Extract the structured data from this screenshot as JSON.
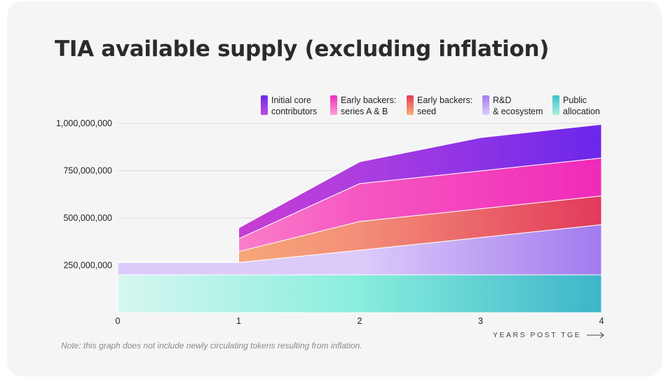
{
  "title": "TIA available supply (excluding inflation)",
  "note": "Note: this graph does not include newly circulating tokens resulting from inflation.",
  "legend": [
    {
      "line1": "Initial core",
      "line2": "contributors",
      "color_top": "#6a2ae8",
      "color_bottom": "#c34be0"
    },
    {
      "line1": "Early backers:",
      "line2": "series A & B",
      "color_top": "#f02aba",
      "color_bottom": "#f9a2d6"
    },
    {
      "line1": "Early backers:",
      "line2": "seed",
      "color_top": "#e43a5c",
      "color_bottom": "#f9b27a"
    },
    {
      "line1": "R&D",
      "line2": "& ecosystem",
      "color_top": "#a77af0",
      "color_bottom": "#ddccfa"
    },
    {
      "line1": "Public",
      "line2": "allocation",
      "color_top": "#3cc1cc",
      "color_bottom": "#a8f0e0"
    }
  ],
  "chart_data": {
    "type": "area",
    "title": "TIA available supply (excluding inflation)",
    "xlabel": "YEARS POST TGE",
    "ylabel": "",
    "x_ticks": [
      "0",
      "1",
      "2",
      "3",
      "4"
    ],
    "y_ticks": [
      "250,000,000",
      "500,000,000",
      "750,000,000",
      "1,000,000,000"
    ],
    "ylim": [
      0,
      1000000000
    ],
    "xlim": [
      0,
      4
    ],
    "stacked": true,
    "grid": "horizontal",
    "legend_position": "top",
    "series": [
      {
        "name": "Public allocation",
        "x": [
          0,
          1,
          1,
          2,
          3,
          4
        ],
        "values": [
          200000000,
          200000000,
          200000000,
          200000000,
          200000000,
          200000000
        ],
        "colors": [
          "#d6f7f0",
          "#88eedd",
          "#3db5c9"
        ]
      },
      {
        "name": "R&D & ecosystem",
        "x": [
          0,
          1,
          1,
          2,
          3,
          4
        ],
        "values": [
          65000000,
          65000000,
          65000000,
          130000000,
          197000000,
          265000000
        ],
        "colors": [
          "#ddcbfa",
          "#dccbfa",
          "#a27bee"
        ]
      },
      {
        "name": "Early backers: seed",
        "x": [
          0,
          1,
          1,
          2,
          3,
          4
        ],
        "values": [
          0,
          0,
          58000000,
          152000000,
          152000000,
          152000000
        ],
        "colors": [
          "#fcc07a",
          "#f38e78",
          "#e23a5a"
        ]
      },
      {
        "name": "Early backers: series A & B",
        "x": [
          0,
          1,
          1,
          2,
          3,
          4
        ],
        "values": [
          0,
          0,
          68000000,
          200000000,
          200000000,
          200000000
        ],
        "colors": [
          "#fca6cf",
          "#f657c2",
          "#f02ab8"
        ]
      },
      {
        "name": "Initial core contributors",
        "x": [
          0,
          1,
          1,
          2,
          3,
          4
        ],
        "values": [
          0,
          0,
          57000000,
          115000000,
          176000000,
          178000000
        ],
        "colors": [
          "#e23ac3",
          "#ad3ee0",
          "#6b27ea"
        ]
      }
    ]
  }
}
